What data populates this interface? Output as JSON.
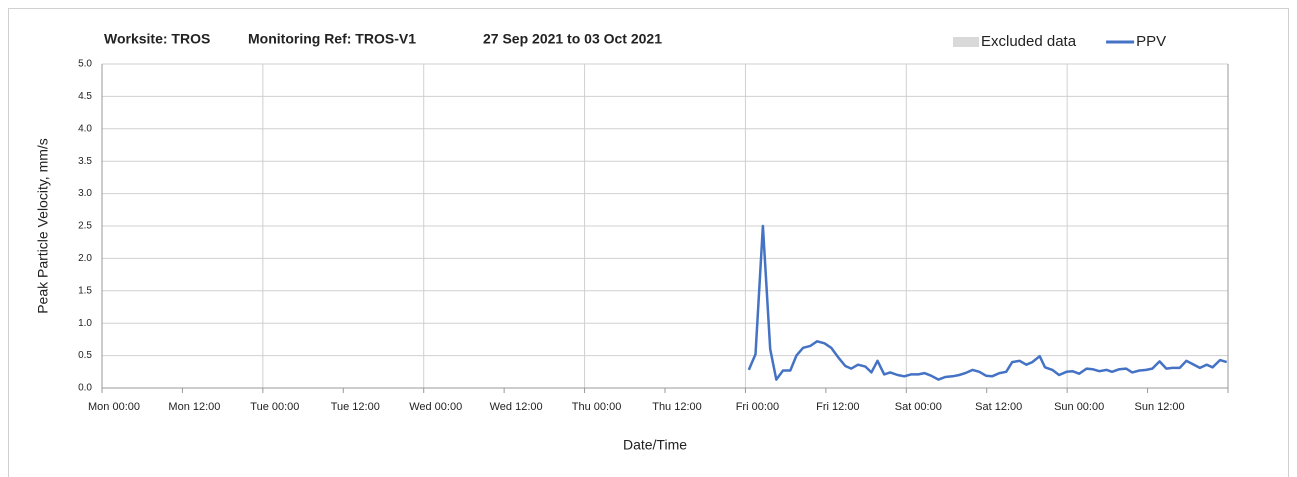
{
  "chart_data": {
    "type": "line",
    "title": "Worksite: TROS",
    "reference": "Monitoring Ref: TROS-V1",
    "period": "27 Sep 2021 to 03 Oct 2021",
    "x_label": "Date/Time",
    "y_label": "Peak Particle Velocity, mm/s",
    "xlim": [
      0,
      168
    ],
    "xticks": [
      {
        "value": 0,
        "label": "Mon 00:00"
      },
      {
        "value": 12,
        "label": "Mon 12:00"
      },
      {
        "value": 24,
        "label": "Tue 00:00"
      },
      {
        "value": 36,
        "label": "Tue 12:00"
      },
      {
        "value": 48,
        "label": "Wed 00:00"
      },
      {
        "value": 60,
        "label": "Wed 12:00"
      },
      {
        "value": 72,
        "label": "Thu 00:00"
      },
      {
        "value": 84,
        "label": "Thu 12:00"
      },
      {
        "value": 96,
        "label": "Fri 00:00"
      },
      {
        "value": 108,
        "label": "Fri 12:00"
      },
      {
        "value": 120,
        "label": "Sat 00:00"
      },
      {
        "value": 132,
        "label": "Sat 12:00"
      },
      {
        "value": 144,
        "label": "Sun 00:00"
      },
      {
        "value": 156,
        "label": "Sun 12:00"
      }
    ],
    "ylim": [
      0,
      5
    ],
    "yticks": [
      {
        "value": 0,
        "label": "0.0"
      },
      0.5,
      {
        "value": 1,
        "label": "1.0"
      },
      1.5,
      {
        "value": 2,
        "label": "2.0"
      },
      2.5,
      {
        "value": 3,
        "label": "3.0"
      },
      3.5,
      {
        "value": 4,
        "label": "4.0"
      },
      4.5,
      {
        "value": 5,
        "label": "5.0"
      }
    ],
    "grid": true,
    "legend": "top-right",
    "series": [
      {
        "name": "Excluded data",
        "color": "#d9d9d9",
        "x": [],
        "values": []
      },
      {
        "name": "PPV",
        "color": "#4472c4",
        "x": [
          96.5,
          97.5,
          98.6,
          99.7,
          100.6,
          101.6,
          102.7,
          103.6,
          104.6,
          105.7,
          106.7,
          107.8,
          108.8,
          109.8,
          110.9,
          111.8,
          112.8,
          113.9,
          114.8,
          115.7,
          116.7,
          117.6,
          118.7,
          119.7,
          120.7,
          121.8,
          122.7,
          123.7,
          124.8,
          125.8,
          126.9,
          127.9,
          128.8,
          129.9,
          130.9,
          131.9,
          132.8,
          133.9,
          134.9,
          135.8,
          136.9,
          137.9,
          138.8,
          139.9,
          140.7,
          141.8,
          142.8,
          143.9,
          144.8,
          145.8,
          146.9,
          147.8,
          148.8,
          149.9,
          150.7,
          151.8,
          152.8,
          153.7,
          154.8,
          155.8,
          156.7,
          157.8,
          158.8,
          159.7,
          160.8,
          161.8,
          162.7,
          163.8,
          164.8,
          165.7,
          166.8,
          167.8
        ],
        "values": [
          0.28,
          0.52,
          2.5,
          0.6,
          0.13,
          0.27,
          0.27,
          0.5,
          0.62,
          0.65,
          0.72,
          0.69,
          0.62,
          0.48,
          0.34,
          0.3,
          0.36,
          0.33,
          0.24,
          0.42,
          0.21,
          0.24,
          0.2,
          0.18,
          0.21,
          0.21,
          0.23,
          0.19,
          0.13,
          0.17,
          0.18,
          0.2,
          0.23,
          0.28,
          0.25,
          0.19,
          0.18,
          0.23,
          0.25,
          0.4,
          0.42,
          0.36,
          0.4,
          0.49,
          0.32,
          0.28,
          0.2,
          0.25,
          0.26,
          0.22,
          0.3,
          0.29,
          0.26,
          0.28,
          0.25,
          0.29,
          0.3,
          0.24,
          0.27,
          0.28,
          0.3,
          0.41,
          0.3,
          0.31,
          0.31,
          0.42,
          0.37,
          0.31,
          0.36,
          0.32,
          0.43,
          0.4
        ]
      }
    ]
  }
}
